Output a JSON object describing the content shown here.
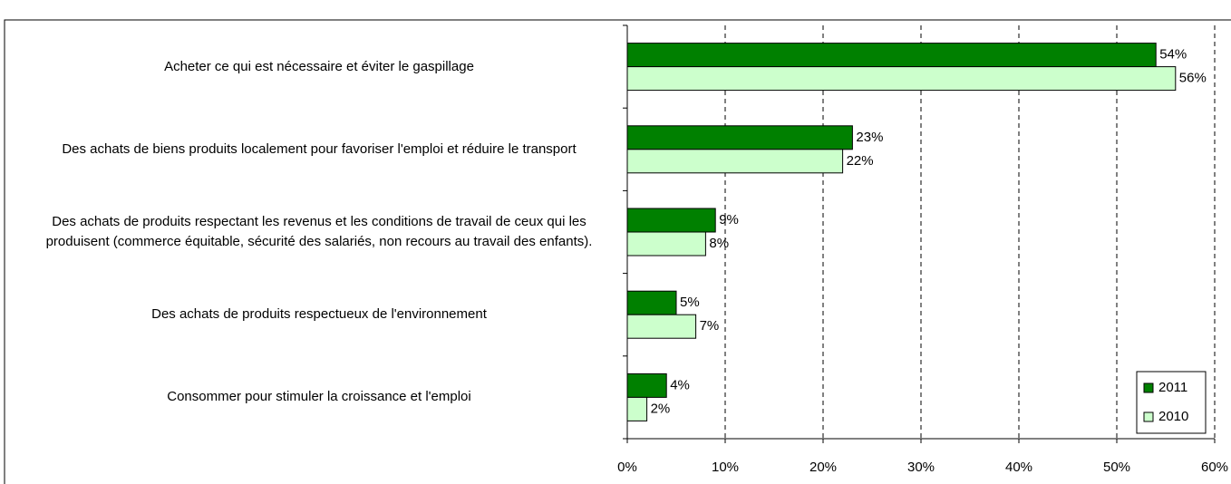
{
  "chart_data": {
    "type": "hbar",
    "categories": [
      "Acheter ce qui est nécessaire et éviter le gaspillage",
      "Des achats de biens produits localement pour favoriser l'emploi et réduire le transport",
      "Des achats de produits respectant les revenus et les conditions de travail de ceux qui les produisent (commerce équitable, sécurité des salariés, non recours au travail des enfants).",
      "Des achats de produits respectueux de l'environnement",
      "Consommer pour stimuler la croissance et l'emploi"
    ],
    "series": [
      {
        "name": "2011",
        "color": "#008000",
        "values": [
          54,
          23,
          9,
          5,
          4
        ],
        "value_labels": [
          "54%",
          "23%",
          "9%",
          "5%",
          "4%"
        ]
      },
      {
        "name": "2010",
        "color": "#ccffcc",
        "values": [
          56,
          22,
          8,
          7,
          2
        ],
        "value_labels": [
          "56%",
          "22%",
          "8%",
          "7%",
          "2%"
        ]
      }
    ],
    "xlim": [
      0,
      60
    ],
    "xticks": [
      {
        "value": 0,
        "label": "0%"
      },
      {
        "value": 10,
        "label": "10%"
      },
      {
        "value": 20,
        "label": "20%"
      },
      {
        "value": 30,
        "label": "30%"
      },
      {
        "value": 40,
        "label": "40%"
      },
      {
        "value": 50,
        "label": "50%"
      },
      {
        "value": 60,
        "label": "60%"
      }
    ],
    "grid": true,
    "legend": "lower right"
  }
}
